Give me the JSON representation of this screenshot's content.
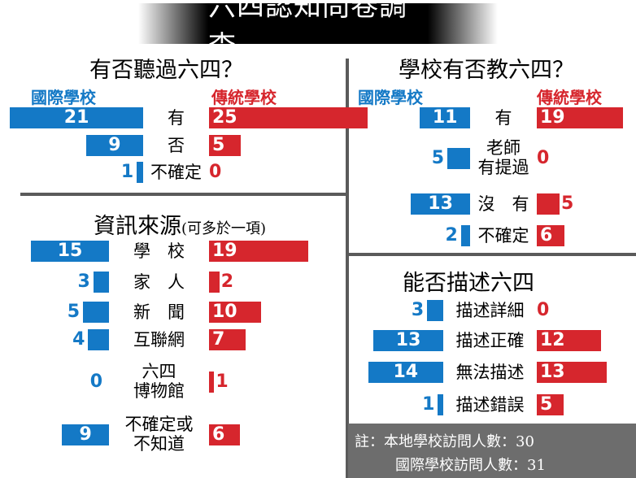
{
  "title": "六四認知問卷調查",
  "colors": {
    "international": "#1479c6",
    "traditional": "#d6262d"
  },
  "note": {
    "line1": "註：本地學校訪問人數：30",
    "line2": "國際學校訪問人數：31"
  },
  "chart_data": [
    {
      "type": "bar",
      "title": "有否聽過六四？",
      "series_labels": {
        "international": "國際學校",
        "traditional": "傳統學校"
      },
      "categories": [
        "有",
        "否",
        "不確定"
      ],
      "series": [
        {
          "name": "國際學校",
          "values": [
            21,
            9,
            1
          ]
        },
        {
          "name": "傳統學校",
          "values": [
            25,
            5,
            0
          ]
        }
      ]
    },
    {
      "type": "bar",
      "title": "學校有否教六四？",
      "series_labels": {
        "international": "國際學校",
        "traditional": "傳統學校"
      },
      "categories": [
        "有",
        "老師\n有提過",
        "沒　有",
        "不確定"
      ],
      "series": [
        {
          "name": "國際學校",
          "values": [
            11,
            5,
            13,
            2
          ]
        },
        {
          "name": "傳統學校",
          "values": [
            19,
            0,
            5,
            6
          ]
        }
      ]
    },
    {
      "type": "bar",
      "title": "資訊來源",
      "subtitle": "(可多於一項)",
      "categories": [
        "學　校",
        "家　人",
        "新　聞",
        "互聯網",
        "六四\n博物館",
        "不確定或\n不知道"
      ],
      "series": [
        {
          "name": "國際學校",
          "values": [
            15,
            3,
            5,
            4,
            0,
            9
          ]
        },
        {
          "name": "傳統學校",
          "values": [
            19,
            2,
            10,
            7,
            1,
            6
          ]
        }
      ]
    },
    {
      "type": "bar",
      "title": "能否描述六四",
      "categories": [
        "描述詳細",
        "描述正確",
        "無法描述",
        "描述錯誤"
      ],
      "series": [
        {
          "name": "國際學校",
          "values": [
            3,
            13,
            14,
            1
          ]
        },
        {
          "name": "傳統學校",
          "values": [
            0,
            12,
            13,
            5
          ]
        }
      ]
    }
  ]
}
